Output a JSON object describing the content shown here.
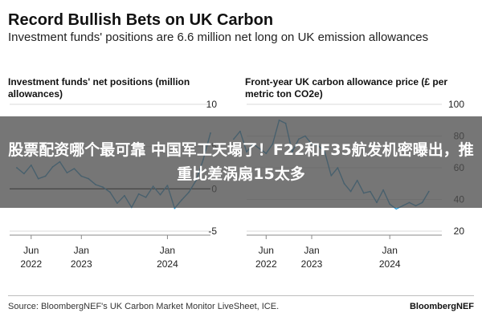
{
  "header": {
    "title": "Record Bullish Bets on UK Carbon",
    "subtitle": "Investment funds' positions are 6.6 million net long on UK emission allowances"
  },
  "overlay": {
    "text": "股票配资哪个最可靠 中国军工天塌了！F22和F35航发机密曝出，推重比差涡扇15太多"
  },
  "footer": {
    "source": "Source: BloombergNEF's UK Carbon Market Monitor LiveSheet, ICE.",
    "brand": "BloombergNEF"
  },
  "colors": {
    "series": "#2f9ad4",
    "zero_line": "#111111",
    "grid": "#d9d9d9",
    "banner": "#505050"
  },
  "chart_data": [
    {
      "type": "line",
      "title": "Investment funds' net positions (million allowances)",
      "y_axis_side": "right",
      "ylim": [
        -5,
        10
      ],
      "yticks": [
        10,
        5,
        0,
        -5
      ],
      "xticks": [
        {
          "x": "2022-06",
          "label": "Jun\n2022"
        },
        {
          "x": "2023-01",
          "label": "Jan\n2023"
        },
        {
          "x": "2024-01",
          "label": "Jan\n2024"
        }
      ],
      "series": [
        {
          "x": [
            "2022-04",
            "2022-05",
            "2022-06",
            "2022-07",
            "2022-08",
            "2022-09",
            "2022-10",
            "2022-11",
            "2022-12",
            "2023-01",
            "2023-02",
            "2023-03",
            "2023-04",
            "2023-05",
            "2023-06",
            "2023-07",
            "2023-08",
            "2023-09",
            "2023-10",
            "2023-11",
            "2023-12",
            "2024-01",
            "2024-02",
            "2024-03",
            "2024-04",
            "2024-05",
            "2024-06",
            "2024-07"
          ],
          "values": [
            2.5,
            1.8,
            2.8,
            1.2,
            1.5,
            2.6,
            3.2,
            1.9,
            2.4,
            1.5,
            1.2,
            0.5,
            0.2,
            -0.4,
            -1.7,
            -0.8,
            -2.2,
            -0.6,
            -1.0,
            0.3,
            -0.7,
            0.4,
            -2.3,
            -1.3,
            -0.4,
            1.0,
            3.5,
            6.6
          ]
        }
      ],
      "zero_line": true,
      "grid": true
    },
    {
      "type": "line",
      "title": "Front-year UK carbon allowance price (£ per metric ton CO2e)",
      "y_axis_side": "right",
      "ylim": [
        20,
        100
      ],
      "yticks": [
        100,
        80,
        60,
        40,
        20
      ],
      "xticks": [
        {
          "x": "2022-06",
          "label": "Jun\n2022"
        },
        {
          "x": "2023-01",
          "label": "Jan\n2023"
        },
        {
          "x": "2024-01",
          "label": "Jan\n2024"
        }
      ],
      "series": [
        {
          "x": [
            "2022-01",
            "2022-02",
            "2022-03",
            "2022-04",
            "2022-05",
            "2022-06",
            "2022-07",
            "2022-08",
            "2022-09",
            "2022-10",
            "2022-11",
            "2022-12",
            "2023-01",
            "2023-02",
            "2023-03",
            "2023-04",
            "2023-05",
            "2023-06",
            "2023-07",
            "2023-08",
            "2023-09",
            "2023-10",
            "2023-11",
            "2023-12",
            "2024-01",
            "2024-02",
            "2024-03",
            "2024-04",
            "2024-05",
            "2024-06",
            "2024-07"
          ],
          "values": [
            78,
            83,
            70,
            75,
            72,
            69,
            75,
            90,
            88,
            70,
            78,
            80,
            75,
            74,
            70,
            55,
            60,
            50,
            45,
            52,
            44,
            45,
            38,
            46,
            37,
            34,
            36,
            38,
            36,
            38,
            45
          ]
        }
      ],
      "zero_line": false,
      "grid": true
    }
  ]
}
